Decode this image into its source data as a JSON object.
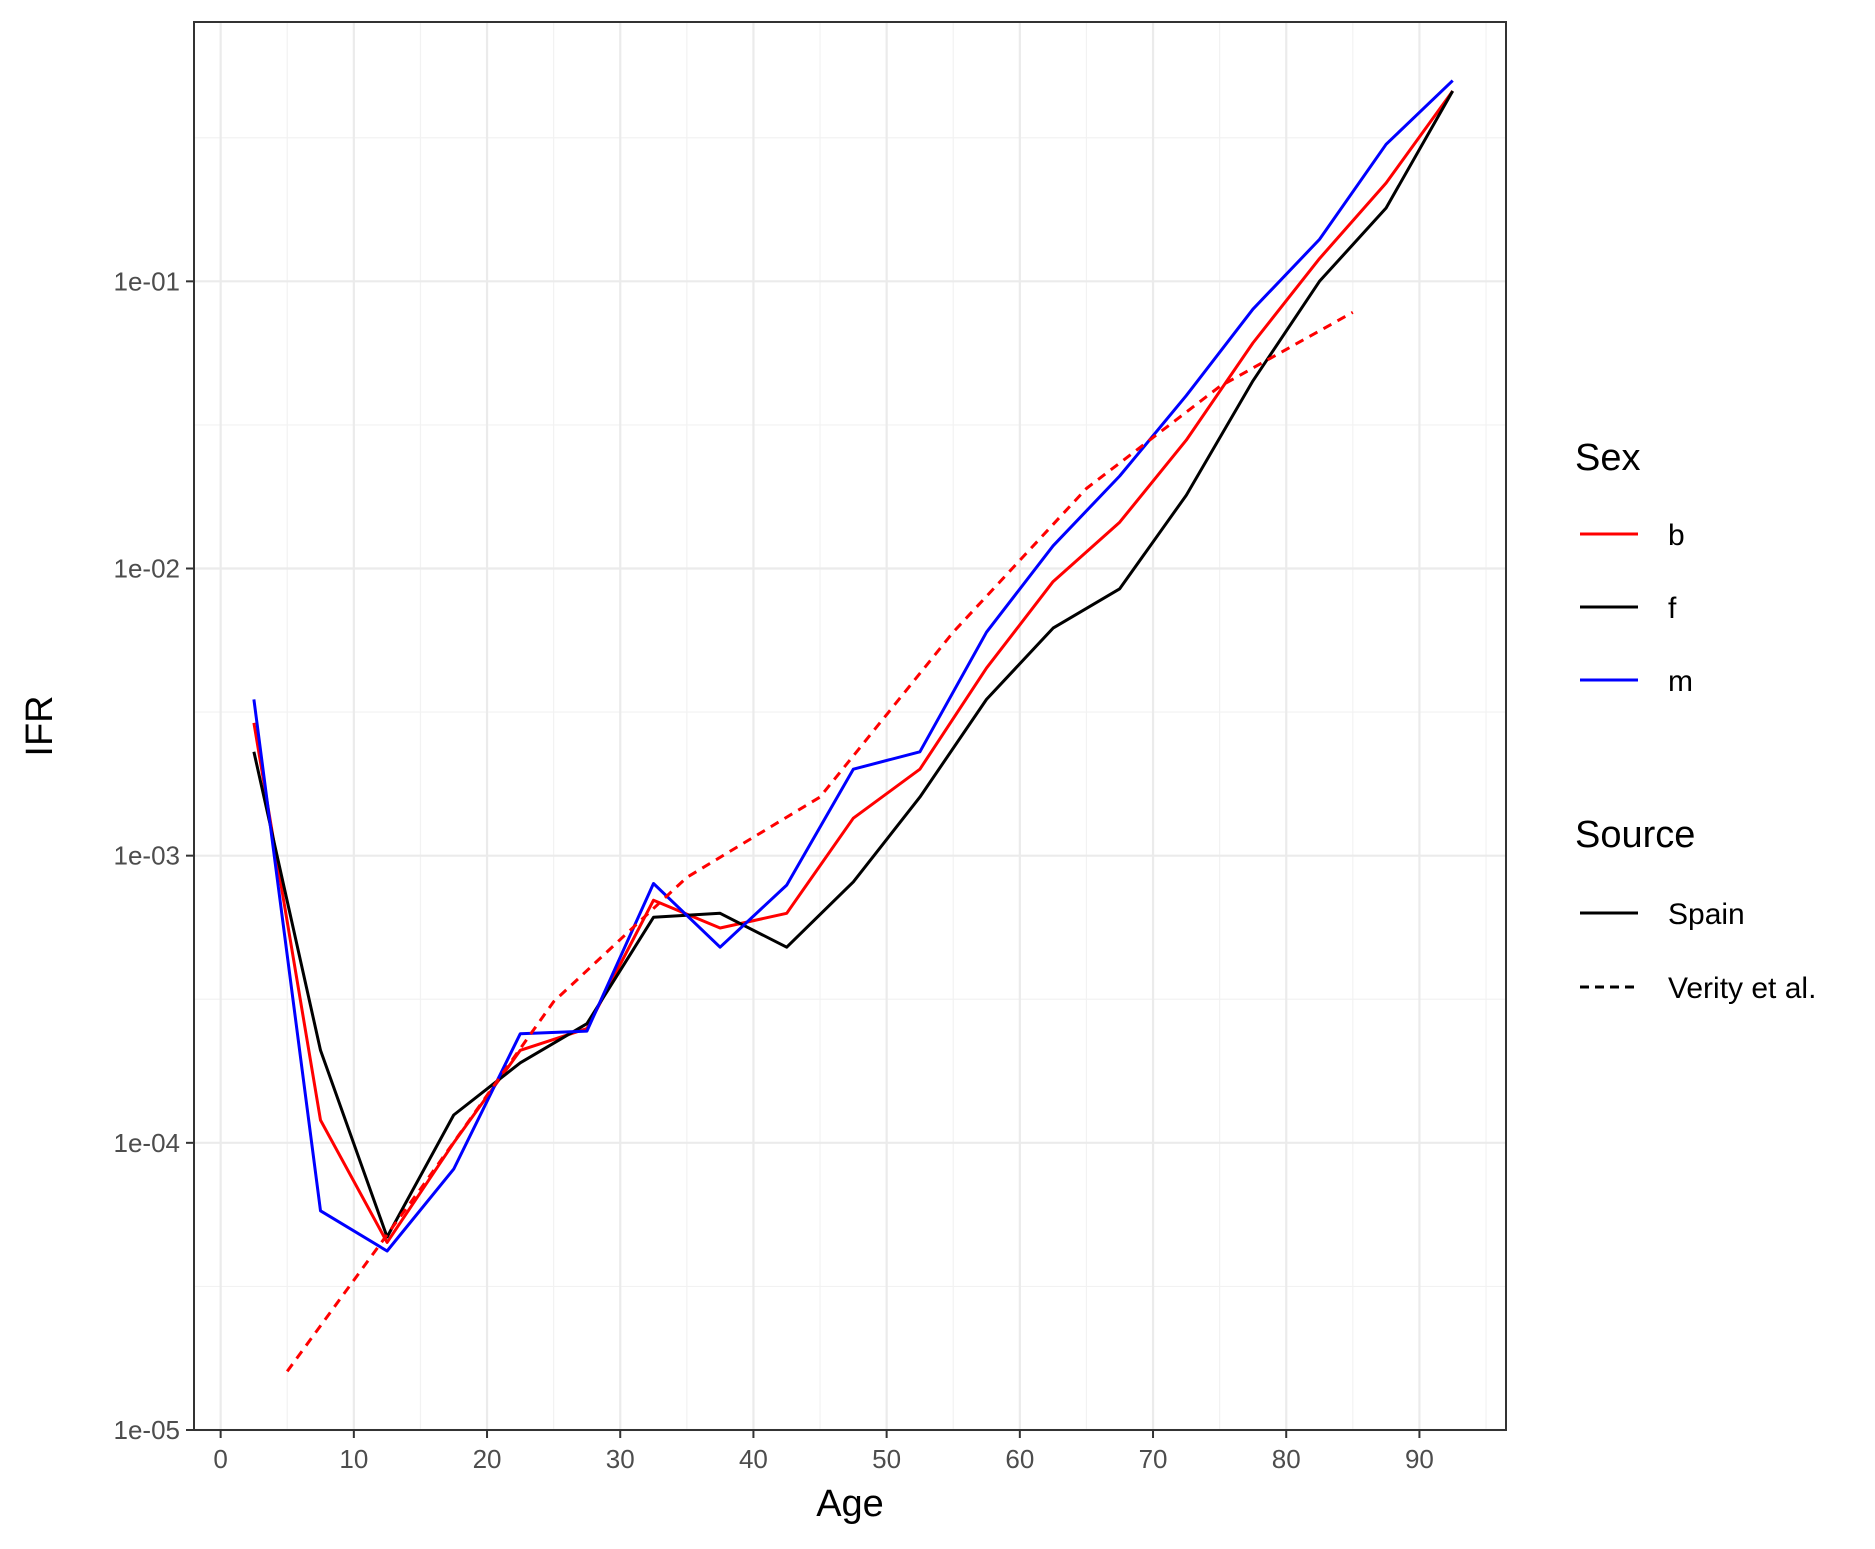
{
  "chart_data": {
    "type": "line",
    "xlabel": "Age",
    "ylabel": "IFR",
    "x_scale": "linear",
    "y_scale": "log10",
    "xlim": [
      -2,
      96.5
    ],
    "ylim": [
      1e-05,
      0.8
    ],
    "x_ticks": [
      0,
      10,
      20,
      30,
      40,
      50,
      60,
      70,
      80,
      90
    ],
    "x_tick_labels": [
      "0",
      "10",
      "20",
      "30",
      "40",
      "50",
      "60",
      "70",
      "80",
      "90"
    ],
    "y_ticks": [
      1e-05,
      0.0001,
      0.001,
      0.01,
      0.1
    ],
    "y_tick_labels": [
      "1e-05",
      "1e-04",
      "1e-03",
      "1e-02",
      "1e-01"
    ],
    "grid": true,
    "legend_position": "right",
    "legends": [
      {
        "title": "Sex",
        "entries": [
          {
            "label": "b",
            "color": "#ff0000",
            "dash": "solid"
          },
          {
            "label": "f",
            "color": "#000000",
            "dash": "solid"
          },
          {
            "label": "m",
            "color": "#0000ff",
            "dash": "solid"
          }
        ]
      },
      {
        "title": "Source",
        "entries": [
          {
            "label": "Spain",
            "color": "#000000",
            "dash": "solid"
          },
          {
            "label": "Verity et al.",
            "color": "#000000",
            "dash": "dashed"
          }
        ]
      }
    ],
    "series": [
      {
        "name": "b",
        "source": "Spain",
        "color": "#ff0000",
        "dash": "solid",
        "x": [
          2.5,
          7.5,
          12.5,
          17.5,
          22.5,
          27.5,
          32.5,
          37.5,
          42.5,
          47.5,
          52.5,
          57.5,
          62.5,
          67.5,
          72.5,
          77.5,
          82.5,
          87.5,
          92.5
        ],
        "y": [
          0.0029,
          0.00012,
          4.5e-05,
          0.0001,
          0.00021,
          0.00025,
          0.0007,
          0.00056,
          0.00063,
          0.00135,
          0.002,
          0.0045,
          0.009,
          0.0145,
          0.028,
          0.061,
          0.12,
          0.22,
          0.46
        ]
      },
      {
        "name": "f",
        "source": "Spain",
        "color": "#000000",
        "dash": "solid",
        "x": [
          2.5,
          7.5,
          12.5,
          17.5,
          22.5,
          27.5,
          32.5,
          37.5,
          42.5,
          47.5,
          52.5,
          57.5,
          62.5,
          67.5,
          72.5,
          77.5,
          82.5,
          87.5,
          92.5
        ],
        "y": [
          0.0023,
          0.00021,
          4.7e-05,
          0.000125,
          0.00019,
          0.00026,
          0.00061,
          0.00063,
          0.00048,
          0.00081,
          0.0016,
          0.0035,
          0.0062,
          0.0085,
          0.018,
          0.045,
          0.1,
          0.18,
          0.46
        ]
      },
      {
        "name": "m",
        "source": "Spain",
        "color": "#0000ff",
        "dash": "solid",
        "x": [
          2.5,
          7.5,
          12.5,
          17.5,
          22.5,
          27.5,
          32.5,
          37.5,
          42.5,
          47.5,
          52.5,
          57.5,
          62.5,
          67.5,
          72.5,
          77.5,
          82.5,
          87.5,
          92.5
        ],
        "y": [
          0.0035,
          5.8e-05,
          4.2e-05,
          8.1e-05,
          0.00024,
          0.000245,
          0.0008,
          0.00048,
          0.00079,
          0.002,
          0.0023,
          0.006,
          0.012,
          0.021,
          0.04,
          0.08,
          0.14,
          0.3,
          0.5
        ]
      },
      {
        "name": "b",
        "source": "Verity et al.",
        "color": "#ff0000",
        "dash": "dashed",
        "x": [
          5,
          15,
          25,
          35,
          45,
          55,
          65,
          75,
          85
        ],
        "y": [
          1.6e-05,
          6.9e-05,
          0.00031,
          0.00084,
          0.0016,
          0.006,
          0.019,
          0.043,
          0.078
        ]
      }
    ]
  }
}
